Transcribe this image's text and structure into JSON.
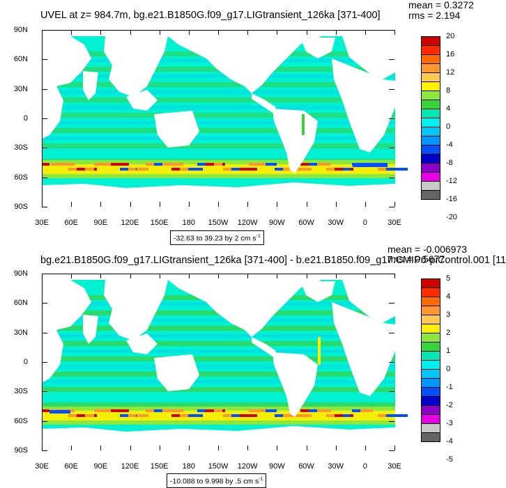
{
  "panels": [
    {
      "title": "UVEL at z= 984.7m, bg.e21.B1850G.f09_g17.LIGtransient_126ka [371-400]",
      "mean": "mean = 0.3272",
      "rms": "rms = 2.194",
      "range": "-32.63 to 39.23 by 2 cm s",
      "range_exp": "-1",
      "colorbar_labels": [
        "20",
        "16",
        "12",
        "8",
        "4",
        "0",
        "-4",
        "-8",
        "-12",
        "-16",
        "-20"
      ]
    },
    {
      "title": "bg.e21.B1850G.f09_g17.LIGtransient_126ka [371-400] - b.e21.B1850.f09_g17.CMIP6-piControl.001 [11",
      "mean": "mean = -0.006973",
      "rms": "rms = 0.5677",
      "range": "-10.088 to 9.998 by .5 cm s",
      "range_exp": "-1",
      "colorbar_labels": [
        "5",
        "4",
        "3",
        "2",
        "1",
        "0",
        "-1",
        "-2",
        "-3",
        "-4",
        "-5"
      ]
    }
  ],
  "lat_labels": [
    "90N",
    "60N",
    "30N",
    "0",
    "30S",
    "60S",
    "90S"
  ],
  "lon_labels": [
    "30E",
    "60E",
    "90E",
    "120E",
    "150E",
    "180",
    "150W",
    "120W",
    "90W",
    "60W",
    "30W",
    "0",
    "30E"
  ],
  "colorbar_colors": [
    "#d00000",
    "#ff2a00",
    "#ff6a00",
    "#ff9632",
    "#ffc850",
    "#fff000",
    "#8ce63c",
    "#3cd23c",
    "#00e6b4",
    "#00f0f0",
    "#00c8ff",
    "#0096ff",
    "#0050ff",
    "#0000c8",
    "#8c00c8",
    "#e600e6",
    "#c8c8c8",
    "#646464"
  ],
  "ocean_color": "#00f0d2",
  "land_color": "#ffffff",
  "accc_colors": [
    "#fff000",
    "#ff9632",
    "#d00000",
    "#0050ff",
    "#3cd23c"
  ]
}
